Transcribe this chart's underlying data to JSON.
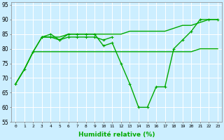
{
  "title": "",
  "xlabel": "Humidité relative (%)",
  "ylabel": "",
  "background_color": "#cceeff",
  "grid_color": "#aaddcc",
  "line_color": "#00aa00",
  "xlim": [
    -0.5,
    23.5
  ],
  "ylim": [
    55,
    96
  ],
  "yticks": [
    55,
    60,
    65,
    70,
    75,
    80,
    85,
    90,
    95
  ],
  "xticks": [
    0,
    1,
    2,
    3,
    4,
    5,
    6,
    7,
    8,
    9,
    10,
    11,
    12,
    13,
    14,
    15,
    16,
    17,
    18,
    19,
    20,
    21,
    22,
    23
  ],
  "series": [
    {
      "x": [
        0,
        1,
        2,
        3,
        4,
        5,
        6,
        7,
        8,
        9,
        10,
        11,
        12,
        13,
        14,
        15,
        16,
        17,
        18,
        19,
        20,
        21,
        22,
        23
      ],
      "y": [
        68,
        73,
        79,
        79,
        79,
        79,
        79,
        79,
        79,
        79,
        79,
        79,
        79,
        79,
        79,
        79,
        79,
        79,
        79,
        79,
        79,
        80,
        80,
        80
      ],
      "marker": null,
      "linewidth": 1.0
    },
    {
      "x": [
        0,
        1,
        2,
        3,
        4,
        5,
        6,
        7,
        8,
        9,
        10,
        11,
        12,
        13,
        14,
        15,
        16,
        17,
        18,
        19,
        20,
        21,
        22,
        23
      ],
      "y": [
        68,
        73,
        79,
        84,
        84,
        84,
        85,
        85,
        85,
        85,
        85,
        85,
        85,
        86,
        86,
        86,
        86,
        86,
        87,
        88,
        88,
        89,
        90,
        90
      ],
      "marker": null,
      "linewidth": 1.0
    },
    {
      "x": [
        3,
        4,
        5,
        6,
        7,
        8,
        9,
        10,
        11
      ],
      "y": [
        84,
        84,
        83,
        84,
        84,
        84,
        84,
        83,
        84
      ],
      "marker": "+",
      "linewidth": 1.0
    },
    {
      "x": [
        0,
        1,
        2,
        3,
        4,
        5,
        6,
        7,
        8,
        9,
        10,
        11,
        12,
        13,
        14,
        15,
        16,
        17,
        18,
        19,
        20,
        21,
        22,
        23
      ],
      "y": [
        68,
        73,
        79,
        84,
        85,
        83,
        85,
        85,
        85,
        85,
        81,
        82,
        75,
        68,
        60,
        60,
        67,
        67,
        80,
        83,
        86,
        90,
        90,
        90
      ],
      "marker": "+",
      "linewidth": 1.0
    }
  ]
}
